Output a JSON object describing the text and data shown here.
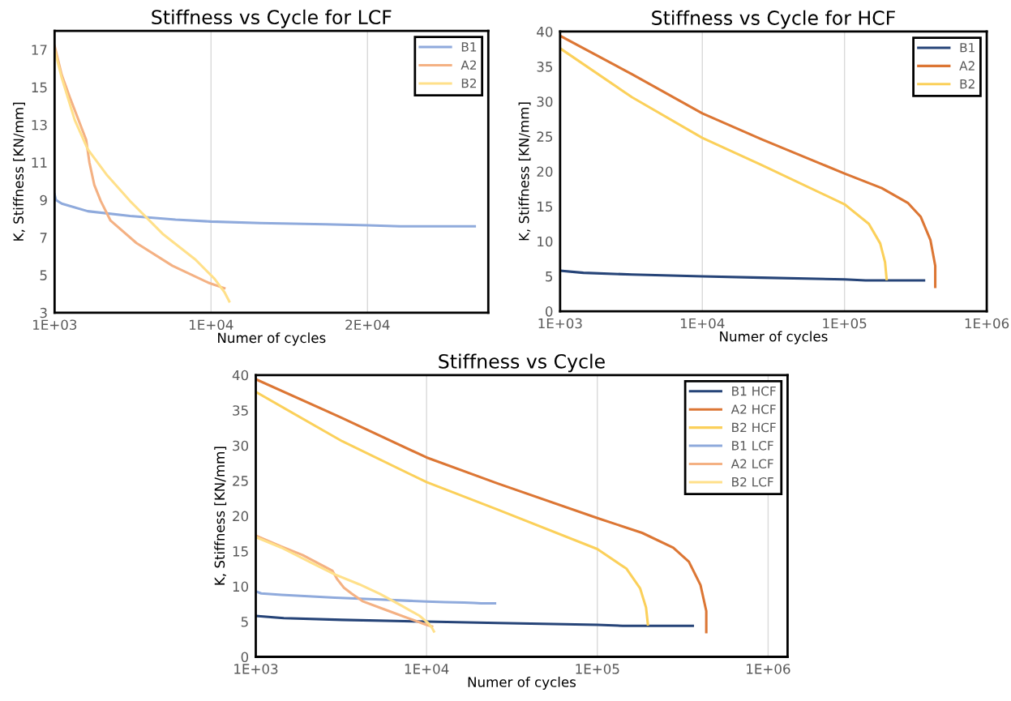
{
  "chart_data": [
    {
      "type": "line",
      "title": "Stiffness vs Cycle for LCF",
      "xlabel": "Numer of cycles",
      "ylabel": "K, Stiffness [KN/mm]",
      "xlim": [
        1000,
        25950
      ],
      "ylim": [
        3,
        18
      ],
      "xticks": [
        {
          "value": 1000,
          "label": "1E+03"
        },
        {
          "value": 10000,
          "label": "1E+04"
        },
        {
          "value": 19000,
          "label": "2E+04"
        }
      ],
      "yticks": [
        3,
        5,
        7,
        9,
        11,
        13,
        15,
        17
      ],
      "grid": "x",
      "legend": "top right",
      "series": [
        {
          "name": "B1",
          "color": "#8faadc",
          "x": [
            1000,
            1075,
            1412,
            2908,
            5341,
            7960,
            9981,
            12826,
            16567,
            19000,
            20870,
            25170
          ],
          "values": [
            9.3,
            9.0,
            8.8,
            8.4,
            8.15,
            7.95,
            7.85,
            7.77,
            7.7,
            7.65,
            7.6,
            7.6
          ]
        },
        {
          "name": "A2",
          "color": "#f4b183",
          "x": [
            1000,
            1412,
            1879,
            2815,
            3002,
            3283,
            3657,
            4218,
            5715,
            7773,
            9831,
            10767
          ],
          "values": [
            17.2,
            15.65,
            14.45,
            12.2,
            11.0,
            9.8,
            8.94,
            7.9,
            6.7,
            5.5,
            4.6,
            4.3
          ]
        },
        {
          "name": "B2",
          "color": "#ffe08a",
          "x": [
            1000,
            1412,
            2160,
            2908,
            4031,
            5341,
            7212,
            9083,
            10205,
            10767,
            11048
          ],
          "values": [
            17.0,
            15.5,
            13.25,
            11.7,
            10.3,
            8.94,
            7.2,
            5.84,
            4.8,
            4.1,
            3.6
          ]
        }
      ]
    },
    {
      "type": "line",
      "title": "Stiffness vs Cycle for HCF",
      "xlabel": "Numer of cycles",
      "ylabel": "K, Stiffness [KN/mm]",
      "log": "x",
      "xlim": [
        1000,
        1000000
      ],
      "ylim": [
        0,
        40
      ],
      "xticks": [
        {
          "value": 1000,
          "label": "1E+03"
        },
        {
          "value": 10000,
          "label": "1E+04"
        },
        {
          "value": 100000,
          "label": "1E+05"
        },
        {
          "value": 1000000,
          "label": "1E+06"
        }
      ],
      "yticks": [
        0,
        5,
        10,
        15,
        20,
        25,
        30,
        35,
        40
      ],
      "grid": "x",
      "legend": "top right",
      "series": [
        {
          "name": "B1",
          "color": "#264478",
          "x": [
            1000,
            1459,
            3206,
            10000,
            26120,
            100000,
            140600,
            362200
          ],
          "values": [
            5.8,
            5.5,
            5.25,
            5.0,
            4.8,
            4.55,
            4.4,
            4.4
          ]
        },
        {
          "name": "A2",
          "color": "#dc7634",
          "x": [
            1000,
            3206,
            10000,
            26120,
            100000,
            182800,
            278600,
            343600,
            401800,
            434500,
            434500
          ],
          "values": [
            39.4,
            33.9,
            28.3,
            24.6,
            19.7,
            17.6,
            15.5,
            13.5,
            10.2,
            6.5,
            3.5
          ]
        },
        {
          "name": "B2",
          "color": "#fbd05a",
          "x": [
            1000,
            3206,
            10000,
            26120,
            100000,
            148300,
            178200,
            192800,
            197700
          ],
          "values": [
            37.6,
            30.6,
            24.8,
            20.9,
            15.3,
            12.5,
            9.7,
            7.0,
            4.6
          ]
        }
      ]
    },
    {
      "type": "line",
      "title": "Stiffness vs Cycle",
      "xlabel": "Numer of cycles",
      "ylabel": "K, Stiffness [KN/mm]",
      "log": "x",
      "xlim": [
        1000,
        1300000
      ],
      "ylim": [
        0,
        40
      ],
      "xticks": [
        {
          "value": 1000,
          "label": "1E+03"
        },
        {
          "value": 10000,
          "label": "1E+04"
        },
        {
          "value": 100000,
          "label": "1E+05"
        },
        {
          "value": 1000000,
          "label": "1E+06"
        }
      ],
      "yticks": [
        0,
        5,
        10,
        15,
        20,
        25,
        30,
        35,
        40
      ],
      "grid": "x",
      "legend": "top right",
      "series": [
        {
          "name": "B1 HCF",
          "color": "#264478",
          "x": [
            1000,
            1459,
            3206,
            10000,
            26120,
            100000,
            140600,
            362200
          ],
          "values": [
            5.8,
            5.5,
            5.25,
            5.0,
            4.8,
            4.55,
            4.4,
            4.4
          ]
        },
        {
          "name": "A2 HCF",
          "color": "#dc7634",
          "x": [
            1000,
            3206,
            10000,
            26120,
            100000,
            182800,
            278600,
            343600,
            401800,
            434500,
            434500
          ],
          "values": [
            39.4,
            33.9,
            28.3,
            24.6,
            19.7,
            17.6,
            15.5,
            13.5,
            10.2,
            6.5,
            3.5
          ]
        },
        {
          "name": "B2 HCF",
          "color": "#fbd05a",
          "x": [
            1000,
            3206,
            10000,
            26120,
            100000,
            148300,
            178200,
            192800,
            197700
          ],
          "values": [
            37.6,
            30.6,
            24.8,
            20.9,
            15.3,
            12.5,
            9.7,
            7.0,
            4.6
          ]
        },
        {
          "name": "B1 LCF",
          "color": "#8faadc",
          "x": [
            1000,
            1075,
            1412,
            2908,
            5341,
            7960,
            9981,
            12826,
            16567,
            19000,
            20870,
            25170
          ],
          "values": [
            9.3,
            9.0,
            8.8,
            8.4,
            8.15,
            7.95,
            7.85,
            7.77,
            7.7,
            7.65,
            7.6,
            7.6
          ]
        },
        {
          "name": "A2 LCF",
          "color": "#f4b183",
          "x": [
            1000,
            1412,
            1879,
            2815,
            3002,
            3283,
            3657,
            4218,
            5715,
            7773,
            9831,
            10767
          ],
          "values": [
            17.2,
            15.65,
            14.45,
            12.2,
            11.0,
            9.8,
            8.94,
            7.9,
            6.7,
            5.5,
            4.6,
            4.3
          ]
        },
        {
          "name": "B2 LCF",
          "color": "#ffe08a",
          "x": [
            1000,
            1412,
            2160,
            2908,
            4031,
            5341,
            7212,
            9083,
            10205,
            10767,
            11048
          ],
          "values": [
            17.0,
            15.5,
            13.25,
            11.7,
            10.3,
            8.94,
            7.2,
            5.84,
            4.8,
            4.1,
            3.6
          ]
        }
      ]
    }
  ]
}
